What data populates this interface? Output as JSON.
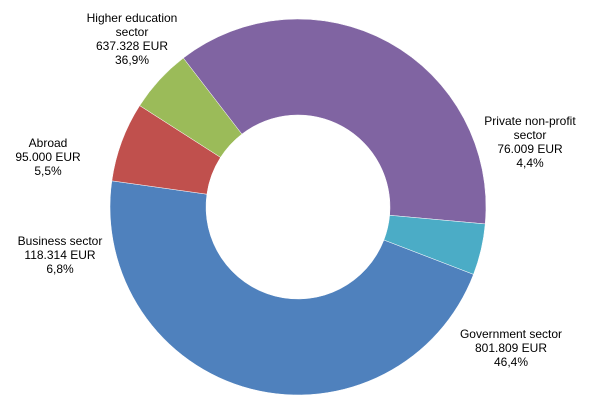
{
  "chart_data": {
    "type": "pie",
    "style": "donut",
    "slices": [
      {
        "name": "Government sector",
        "name_lines": [
          "Government sector"
        ],
        "value_text": "801.809 EUR",
        "percent_text": "46,4%",
        "value": 801809,
        "percent": 46.4,
        "color": "#4f81bd"
      },
      {
        "name": "Business sector",
        "name_lines": [
          "Business sector"
        ],
        "value_text": "118.314 EUR",
        "percent_text": "6,8%",
        "value": 118314,
        "percent": 6.8,
        "color": "#c0504d"
      },
      {
        "name": "Abroad",
        "name_lines": [
          "Abroad"
        ],
        "value_text": "95.000 EUR",
        "percent_text": "5,5%",
        "value": 95000,
        "percent": 5.5,
        "color": "#9bbb59"
      },
      {
        "name": "Higher education sector",
        "name_lines": [
          "Higher education",
          "sector"
        ],
        "value_text": "637.328 EUR",
        "percent_text": "36,9%",
        "value": 637328,
        "percent": 36.9,
        "color": "#8064a2"
      },
      {
        "name": "Private non-profit sector",
        "name_lines": [
          "Private non-profit",
          "sector"
        ],
        "value_text": "76.009 EUR",
        "percent_text": "4,4%",
        "value": 76009,
        "percent": 4.4,
        "color": "#4bacc6"
      }
    ]
  }
}
